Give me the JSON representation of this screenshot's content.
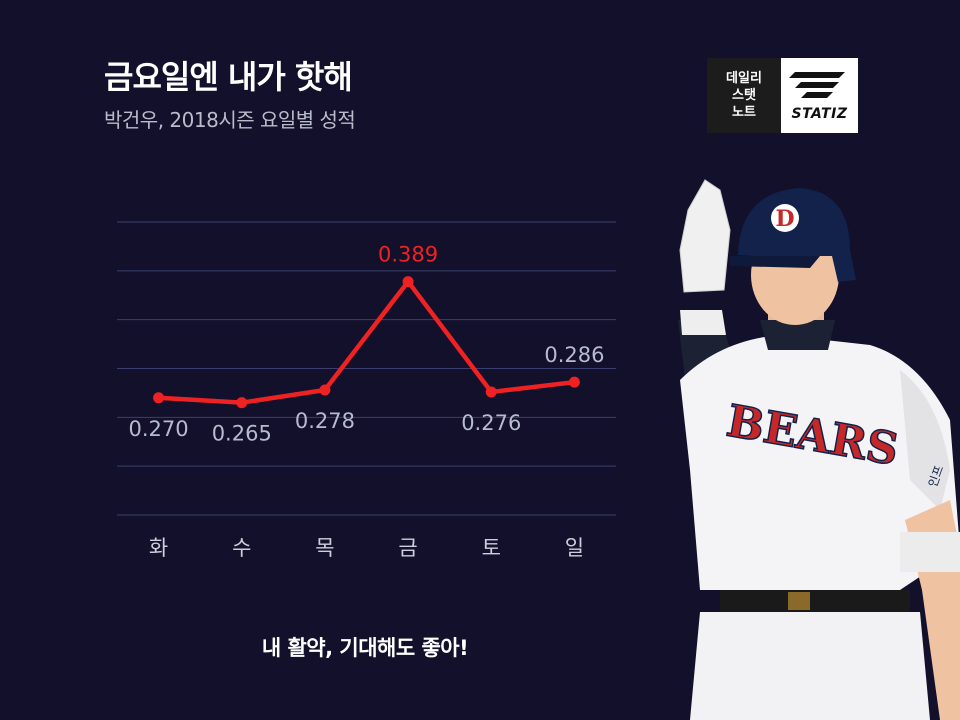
{
  "header": {
    "title": "금요일엔 내가 핫해",
    "subtitle": "박건우, 2018시즌 요일별 성적"
  },
  "logo": {
    "badge_lines": [
      "데일리",
      "스탯",
      "노트"
    ],
    "brand": "STATIZ"
  },
  "chart_data": {
    "type": "line",
    "categories": [
      "화",
      "수",
      "목",
      "금",
      "토",
      "일"
    ],
    "values": [
      0.27,
      0.265,
      0.278,
      0.389,
      0.276,
      0.286
    ],
    "data_labels": [
      "0.270",
      "0.265",
      "0.278",
      "0.389",
      "0.276",
      "0.286"
    ],
    "highlight_index": 3,
    "ylim": [
      0.15,
      0.45
    ],
    "grid": true,
    "colors": {
      "line": "#ee2222",
      "label": "#b6bbd0",
      "highlight": "#ee2222",
      "grid": "#3a3f6e",
      "axis": "#cccfdd"
    }
  },
  "player": {
    "jersey_text": "BEARS",
    "helmet_letter": "D",
    "sleeve_text": "인프"
  },
  "footer": {
    "caption": "내 활약, 기대해도 좋아!"
  }
}
